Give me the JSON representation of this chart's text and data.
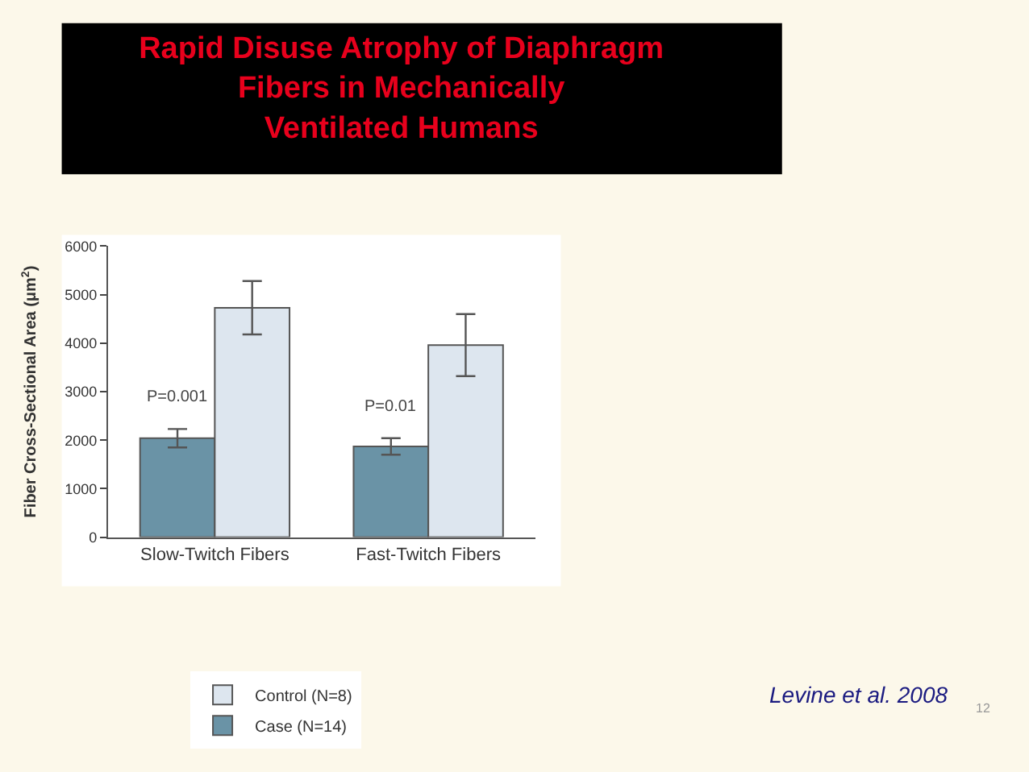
{
  "chart_data": {
    "type": "bar",
    "title": "Rapid Disuse Atrophy of Diaphragm\nFibers in Mechanically\nVentilated Humans",
    "ylabel": "Fiber Cross-Sectional Area (μm$^{2}$)",
    "categories": [
      "Slow-Twitch Fibers",
      "Fast-Twitch Fibers"
    ],
    "series": [
      {
        "name": "Case (N=14)",
        "color": "#6a93a6",
        "values": [
          2040,
          1870
        ],
        "errors": [
          190,
          170
        ]
      },
      {
        "name": "Control (N=8)",
        "color": "#dde6ef",
        "values": [
          4730,
          3960
        ],
        "errors": [
          550,
          640
        ]
      }
    ],
    "ylim": [
      0,
      6000
    ],
    "yticks": [
      0,
      1000,
      2000,
      3000,
      4000,
      5000,
      6000
    ],
    "annotations": [
      {
        "text": "P=0.001",
        "x": "Slow-Twitch Fibers",
        "y": 2230
      },
      {
        "text": "P=0.01",
        "x": "Fast-Twitch Fibers",
        "y": 2040
      },
      "Levine et al. 2008",
      "12"
    ],
    "legend": "bottom left"
  }
}
